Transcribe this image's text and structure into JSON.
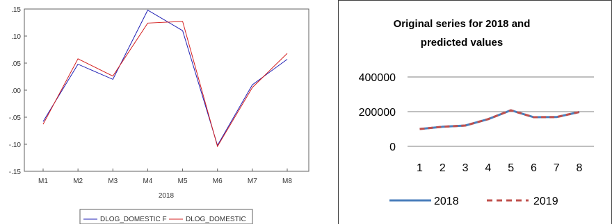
{
  "chart_data": [
    {
      "type": "line",
      "categories": [
        "M1",
        "M2",
        "M3",
        "M4",
        "M5",
        "M6",
        "M7",
        "M8"
      ],
      "xlabel": "2018",
      "ylim": [
        -0.15,
        0.15
      ],
      "yticks": [
        ".15",
        ".10",
        ".05",
        ".00",
        "-.05",
        "-.10",
        "-.15"
      ],
      "ytick_values": [
        0.15,
        0.1,
        0.05,
        0.0,
        -0.05,
        -0.1,
        -0.15
      ],
      "legend_position": "bottom",
      "series": [
        {
          "name": "DLOG_DOMESTIC F",
          "color": "#1f1fb4",
          "values": [
            -0.058,
            0.048,
            0.02,
            0.148,
            0.11,
            -0.102,
            0.01,
            0.057
          ]
        },
        {
          "name": "DLOG_DOMESTIC",
          "color": "#d42020",
          "values": [
            -0.063,
            0.058,
            0.026,
            0.124,
            0.127,
            -0.104,
            0.005,
            0.068
          ]
        }
      ]
    },
    {
      "type": "line",
      "title": "Original series for 2018 and predicted values",
      "title_lines": [
        "Original series for 2018 and",
        "predicted values"
      ],
      "categories": [
        "1",
        "2",
        "3",
        "4",
        "5",
        "6",
        "7",
        "8"
      ],
      "ylim": [
        0,
        400000
      ],
      "yticks": [
        "400000",
        "200000",
        "0"
      ],
      "ytick_values": [
        400000,
        200000,
        0
      ],
      "grid": true,
      "legend_position": "bottom",
      "series": [
        {
          "name": "2018",
          "color": "#4a7ebb",
          "style": "solid",
          "values": [
            100000,
            113000,
            120000,
            157000,
            208000,
            168000,
            169000,
            198000
          ]
        },
        {
          "name": "2019",
          "color": "#c0504d",
          "style": "dashed",
          "values": [
            100000,
            113000,
            120000,
            157000,
            208000,
            168000,
            169000,
            198000
          ]
        }
      ]
    }
  ]
}
